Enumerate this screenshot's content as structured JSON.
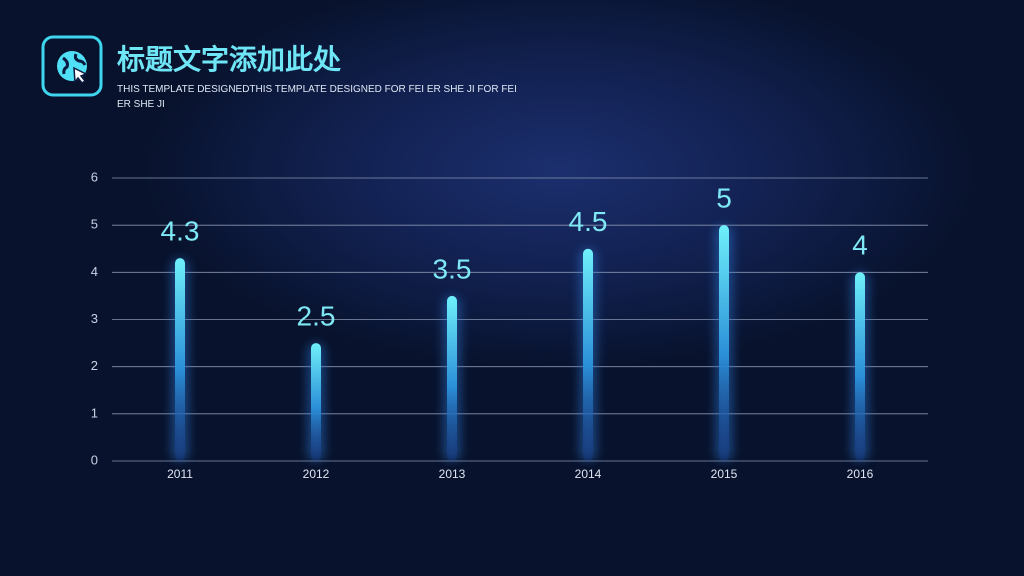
{
  "chart_data": {
    "type": "bar",
    "title": "标题文字添加此处",
    "subtitle": "THIS TEMPLATE DESIGNEDTHIS TEMPLATE DESIGNED FOR FEI ER SHE JI FOR FEI ER SHE JI",
    "categories": [
      "2011",
      "2012",
      "2013",
      "2014",
      "2015",
      "2016"
    ],
    "values": [
      4.3,
      2.5,
      3.5,
      4.5,
      5,
      4
    ],
    "color": "#5fe6f5",
    "ylim": [
      0,
      6
    ],
    "yticks": [
      0,
      1,
      2,
      3,
      4,
      5,
      6
    ],
    "grid": true
  }
}
